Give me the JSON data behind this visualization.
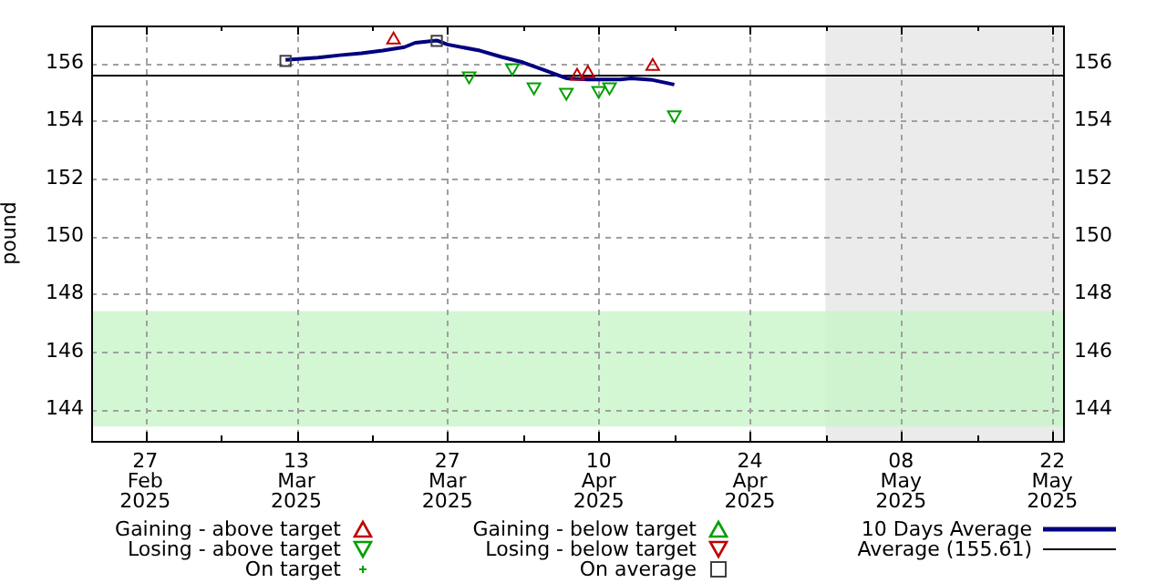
{
  "chart_data": {
    "type": "scatter",
    "ylabel": "pound",
    "xlim": [
      "2025-02-22",
      "2025-05-23"
    ],
    "xticks": [
      {
        "value": "2025-02-27",
        "label": "27\nFeb\n2025"
      },
      {
        "value": "2025-03-06",
        "label": null
      },
      {
        "value": "2025-03-13",
        "label": "13\nMar\n2025"
      },
      {
        "value": "2025-03-20",
        "label": null
      },
      {
        "value": "2025-03-27",
        "label": "27\nMar\n2025"
      },
      {
        "value": "2025-04-03",
        "label": null
      },
      {
        "value": "2025-04-10",
        "label": "10\nApr\n2025"
      },
      {
        "value": "2025-04-17",
        "label": null
      },
      {
        "value": "2025-04-24",
        "label": "24\nApr\n2025"
      },
      {
        "value": "2025-05-01",
        "label": null
      },
      {
        "value": "2025-05-08",
        "label": "08\nMay\n2025"
      },
      {
        "value": "2025-05-15",
        "label": null
      },
      {
        "value": "2025-05-22",
        "label": "22\nMay\n2025"
      }
    ],
    "ylim": [
      142.9,
      157.3
    ],
    "yticks": [
      144,
      146,
      148,
      150,
      152,
      154,
      156
    ],
    "y2lim": [
      142.9,
      157.3
    ],
    "y2ticks": [
      144,
      146,
      148,
      150,
      152,
      154,
      156
    ],
    "grid": true,
    "legend": "bottom",
    "series": [
      {
        "name": "Gaining - above target",
        "marker": "triangle",
        "color": "#c00000",
        "x": [
          "2025-03-22",
          "2025-04-08",
          "2025-04-09",
          "2025-04-15"
        ],
        "values": [
          156.8,
          155.55,
          155.64,
          155.89
        ]
      },
      {
        "name": "Losing - above target",
        "marker": "triangle-down",
        "color": "#00a000",
        "x": [
          "2025-03-29",
          "2025-04-02",
          "2025-04-04",
          "2025-04-07",
          "2025-04-10",
          "2025-04-11",
          "2025-04-17"
        ],
        "values": [
          155.55,
          155.83,
          155.17,
          154.98,
          155.04,
          155.17,
          154.2
        ]
      },
      {
        "name": "On target",
        "marker": "cross",
        "color": "#00a000"
      },
      {
        "name": "Gaining - below target",
        "marker": "triangle",
        "color": "#00a000"
      },
      {
        "name": "Losing - below target",
        "marker": "triangle-down",
        "color": "#c00000"
      },
      {
        "name": "On average",
        "marker": "square",
        "color": "#404040",
        "x": [
          "2025-03-12",
          "2025-03-26"
        ],
        "values": [
          156.07,
          156.77
        ]
      },
      {
        "name": "10 Days Average",
        "type": "line",
        "marker": "none",
        "color": "#000080",
        "x": [
          "2025-03-12",
          "2025-03-15",
          "2025-03-17",
          "2025-03-19",
          "2025-03-21",
          "2025-03-23",
          "2025-03-24",
          "2025-03-26",
          "2025-03-27",
          "2025-03-30",
          "2025-04-01",
          "2025-04-03",
          "2025-04-05",
          "2025-04-07",
          "2025-04-09",
          "2025-04-12",
          "2025-04-13",
          "2025-04-15",
          "2025-04-17"
        ],
        "values": [
          156.11,
          156.19,
          156.27,
          156.34,
          156.43,
          156.55,
          156.7,
          156.78,
          156.64,
          156.43,
          156.21,
          156.02,
          155.75,
          155.47,
          155.43,
          155.43,
          155.47,
          155.41,
          155.25
        ]
      }
    ],
    "ref_lines": [
      {
        "axis": "y",
        "value": 155.61,
        "label": "Average (155.61)",
        "color": "#000000"
      }
    ],
    "bands": [
      {
        "axis": "x",
        "from": "2025-05-01",
        "to": "2025-05-23",
        "color": "#ebebeb"
      },
      {
        "axis": "y",
        "from": 143.4,
        "to": 147.4,
        "color": "#c8f5c8"
      }
    ]
  }
}
